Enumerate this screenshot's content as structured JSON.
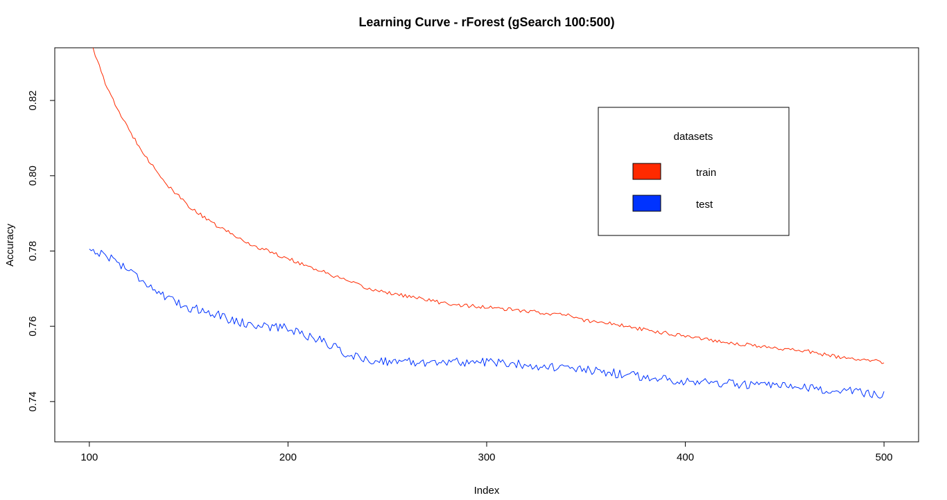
{
  "chart_data": {
    "type": "line",
    "title": "Learning Curve - rForest (gSearch 100:500)",
    "xlabel": "Index",
    "ylabel": "Accuracy",
    "xlim": [
      82.6,
      517.4
    ],
    "ylim": [
      0.7293,
      0.834
    ],
    "x_ticks": [
      100,
      200,
      300,
      400,
      500
    ],
    "x_tick_labels": [
      "100",
      "200",
      "300",
      "400",
      "500"
    ],
    "y_ticks": [
      0.74,
      0.76,
      0.78,
      0.8,
      0.82
    ],
    "y_tick_labels": [
      "0.74",
      "0.76",
      "0.78",
      "0.80",
      "0.82"
    ],
    "grid": false,
    "legend": {
      "title": "datasets",
      "position": "top-right",
      "entries": [
        {
          "label": "train",
          "color": "#ff2a00"
        },
        {
          "label": "test",
          "color": "#0033ff"
        }
      ]
    },
    "series": [
      {
        "name": "train",
        "color": "#ff2a00",
        "x_start": 100,
        "x_step": 1,
        "noise_amplitude": 0.0005,
        "anchors": [
          [
            100,
            0.837
          ],
          [
            105,
            0.829
          ],
          [
            110,
            0.822
          ],
          [
            120,
            0.812
          ],
          [
            130,
            0.804
          ],
          [
            140,
            0.797
          ],
          [
            150,
            0.792
          ],
          [
            160,
            0.788
          ],
          [
            170,
            0.785
          ],
          [
            180,
            0.782
          ],
          [
            190,
            0.78
          ],
          [
            200,
            0.778
          ],
          [
            210,
            0.776
          ],
          [
            220,
            0.774
          ],
          [
            230,
            0.772
          ],
          [
            240,
            0.77
          ],
          [
            250,
            0.769
          ],
          [
            260,
            0.768
          ],
          [
            270,
            0.767
          ],
          [
            280,
            0.766
          ],
          [
            290,
            0.7655
          ],
          [
            300,
            0.765
          ],
          [
            320,
            0.764
          ],
          [
            340,
            0.763
          ],
          [
            350,
            0.7615
          ],
          [
            360,
            0.761
          ],
          [
            380,
            0.759
          ],
          [
            400,
            0.7575
          ],
          [
            420,
            0.7558
          ],
          [
            440,
            0.7545
          ],
          [
            460,
            0.7535
          ],
          [
            480,
            0.7515
          ],
          [
            500,
            0.7505
          ]
        ]
      },
      {
        "name": "test",
        "color": "#0033ff",
        "x_start": 100,
        "x_step": 1,
        "noise_amplitude": 0.0012,
        "anchors": [
          [
            100,
            0.7805
          ],
          [
            110,
            0.7785
          ],
          [
            120,
            0.775
          ],
          [
            130,
            0.771
          ],
          [
            140,
            0.767
          ],
          [
            150,
            0.765
          ],
          [
            160,
            0.764
          ],
          [
            170,
            0.762
          ],
          [
            180,
            0.7605
          ],
          [
            190,
            0.76
          ],
          [
            200,
            0.7595
          ],
          [
            210,
            0.7575
          ],
          [
            220,
            0.7555
          ],
          [
            230,
            0.7525
          ],
          [
            240,
            0.751
          ],
          [
            260,
            0.7505
          ],
          [
            280,
            0.7505
          ],
          [
            300,
            0.7505
          ],
          [
            320,
            0.7498
          ],
          [
            340,
            0.7488
          ],
          [
            360,
            0.7478
          ],
          [
            380,
            0.7465
          ],
          [
            400,
            0.7455
          ],
          [
            420,
            0.7448
          ],
          [
            440,
            0.7442
          ],
          [
            460,
            0.7435
          ],
          [
            480,
            0.7428
          ],
          [
            500,
            0.7418
          ]
        ]
      }
    ]
  }
}
